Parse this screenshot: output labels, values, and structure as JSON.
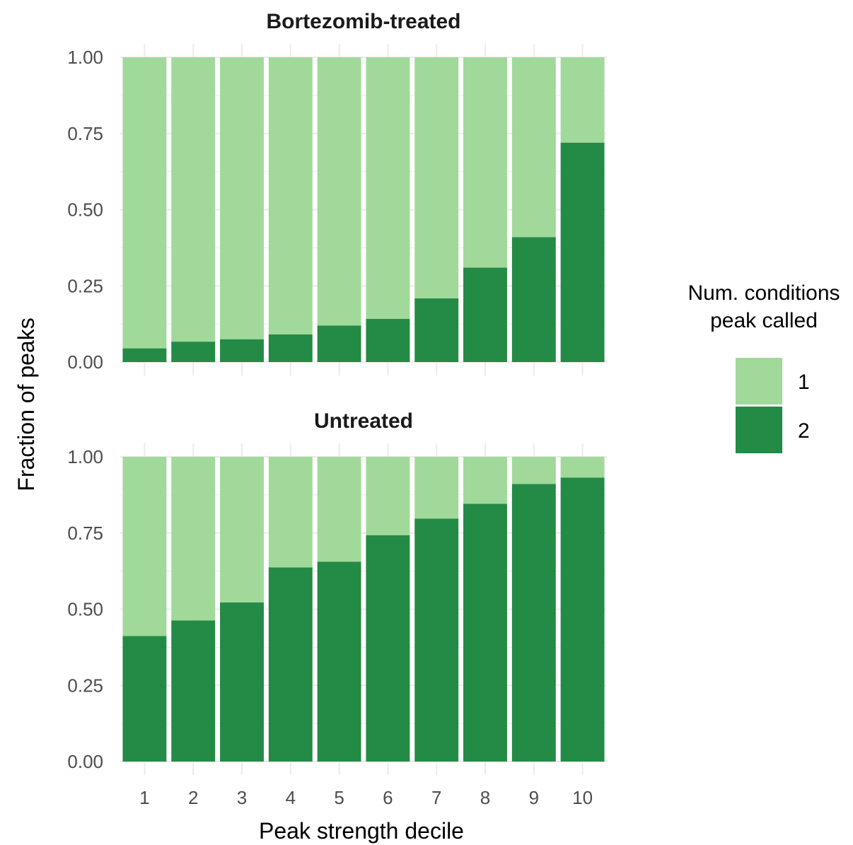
{
  "chart_data": {
    "type": "bar",
    "stacked": true,
    "xlabel": "Peak strength decile",
    "ylabel": "Fraction of peaks",
    "categories": [
      "1",
      "2",
      "3",
      "4",
      "5",
      "6",
      "7",
      "8",
      "9",
      "10"
    ],
    "ylim": [
      0,
      1
    ],
    "yticks": [
      "0.00",
      "0.25",
      "0.50",
      "0.75",
      "1.00"
    ],
    "grid": true,
    "legend": {
      "title_lines": [
        "Num. conditions",
        "peak called"
      ],
      "placement": "right",
      "entries": [
        {
          "label": "1",
          "color": "#a1d99b"
        },
        {
          "label": "2",
          "color": "#238b45"
        }
      ]
    },
    "panels": [
      {
        "title": "Bortezomib-treated",
        "series": [
          {
            "name": "2",
            "values": [
              0.045,
              0.067,
              0.075,
              0.091,
              0.12,
              0.142,
              0.209,
              0.31,
              0.41,
              0.72
            ]
          },
          {
            "name": "1",
            "values": [
              0.955,
              0.933,
              0.925,
              0.909,
              0.88,
              0.858,
              0.791,
              0.69,
              0.59,
              0.28
            ]
          }
        ]
      },
      {
        "title": "Untreated",
        "series": [
          {
            "name": "2",
            "values": [
              0.412,
              0.463,
              0.522,
              0.637,
              0.656,
              0.743,
              0.797,
              0.846,
              0.911,
              0.932
            ]
          },
          {
            "name": "1",
            "values": [
              0.588,
              0.537,
              0.478,
              0.363,
              0.344,
              0.257,
              0.203,
              0.154,
              0.089,
              0.068
            ]
          }
        ]
      }
    ]
  }
}
